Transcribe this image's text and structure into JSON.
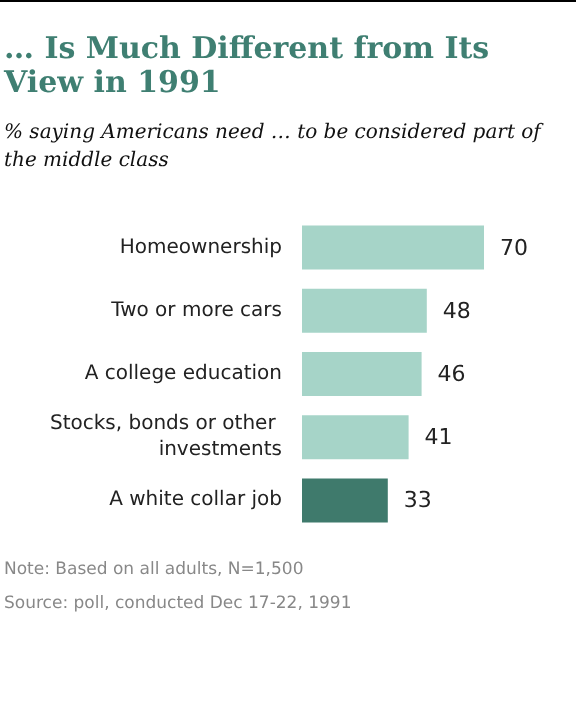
{
  "chart_data": {
    "type": "bar",
    "orientation": "horizontal",
    "title": "… Is Much Different from Its View in 1991",
    "subtitle": "% saying Americans need … to be considered part of the middle class",
    "categories": [
      "Homeownership",
      "Two or more cars",
      "A college education",
      "Stocks, bonds or other investments",
      "A white collar job"
    ],
    "values": [
      70,
      48,
      46,
      41,
      33
    ],
    "colors": [
      "#a6d4c8",
      "#a6d4c8",
      "#a6d4c8",
      "#a6d4c8",
      "#3f7a6c"
    ],
    "data_labels": true,
    "annotations": [
      "Note: Based on all adults, N=1,500",
      "Source: poll, conducted Dec 17-22, 1991"
    ]
  }
}
